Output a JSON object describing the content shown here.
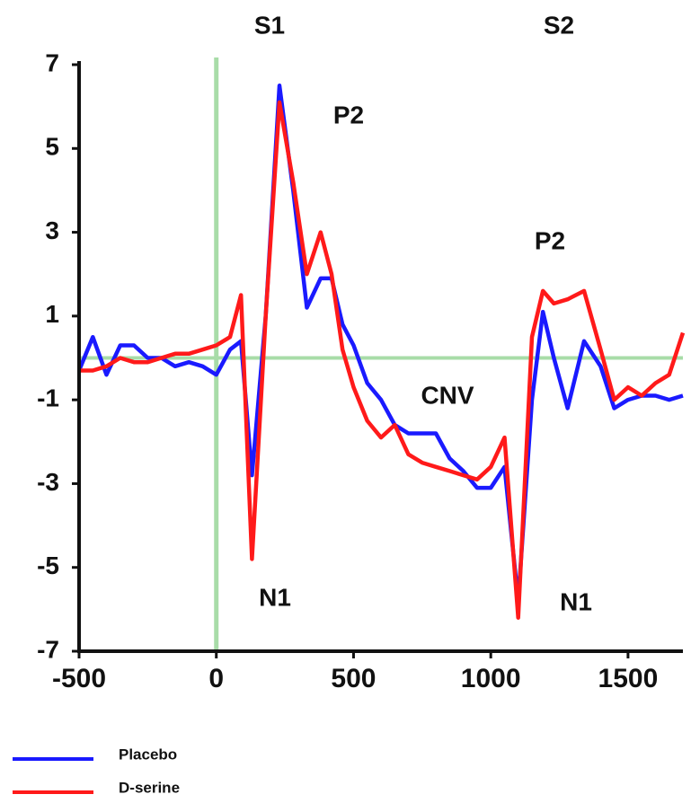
{
  "chart_data": {
    "type": "line",
    "annotations": [
      "S1",
      "S2",
      "P2",
      "P2",
      "CNV",
      "N1",
      "N1"
    ],
    "x": [
      -500,
      -450,
      -400,
      -350,
      -300,
      -250,
      -200,
      -150,
      -100,
      -50,
      0,
      50,
      90,
      130,
      180,
      230,
      280,
      330,
      380,
      420,
      460,
      500,
      550,
      600,
      650,
      700,
      750,
      800,
      850,
      900,
      950,
      1000,
      1050,
      1100,
      1150,
      1190,
      1230,
      1280,
      1340,
      1400,
      1450,
      1500,
      1550,
      1600,
      1650,
      1700
    ],
    "series": [
      {
        "name": "Placebo",
        "color": "#1a1aff",
        "values": [
          -0.3,
          0.5,
          -0.4,
          0.3,
          0.3,
          0,
          0,
          -0.2,
          -0.1,
          -0.2,
          -0.4,
          0.2,
          0.4,
          -2.8,
          1,
          6.5,
          4,
          1.2,
          1.9,
          1.9,
          0.8,
          0.3,
          -0.6,
          -1,
          -1.6,
          -1.8,
          -1.8,
          -1.8,
          -2.4,
          -2.7,
          -3.1,
          -3.1,
          -2.6,
          -5.8,
          -1,
          1.1,
          0,
          -1.2,
          0.4,
          -0.2,
          -1.2,
          -1,
          -0.9,
          -0.9,
          -1,
          -0.9
        ]
      },
      {
        "name": "D-serine",
        "color": "#ff1a1a",
        "values": [
          -0.3,
          -0.3,
          -0.2,
          0,
          -0.1,
          -0.1,
          0,
          0.1,
          0.1,
          0.2,
          0.3,
          0.5,
          1.5,
          -4.8,
          1,
          6.1,
          4.2,
          2,
          3,
          2,
          0.2,
          -0.7,
          -1.5,
          -1.9,
          -1.6,
          -2.3,
          -2.5,
          -2.6,
          -2.7,
          -2.8,
          -2.9,
          -2.6,
          -1.9,
          -6.2,
          0.5,
          1.6,
          1.3,
          1.4,
          1.6,
          0.2,
          -1,
          -0.7,
          -0.9,
          -0.6,
          -0.4,
          0.6
        ]
      }
    ],
    "xlim": [
      -500,
      1700
    ],
    "xticks": [
      -500,
      0,
      500,
      1000,
      1500
    ],
    "ylim": [
      -7,
      7
    ],
    "yticks": [
      7,
      5,
      3,
      1,
      -1,
      -3,
      -5,
      -7
    ],
    "reference_line_color": "#a8dca8"
  }
}
